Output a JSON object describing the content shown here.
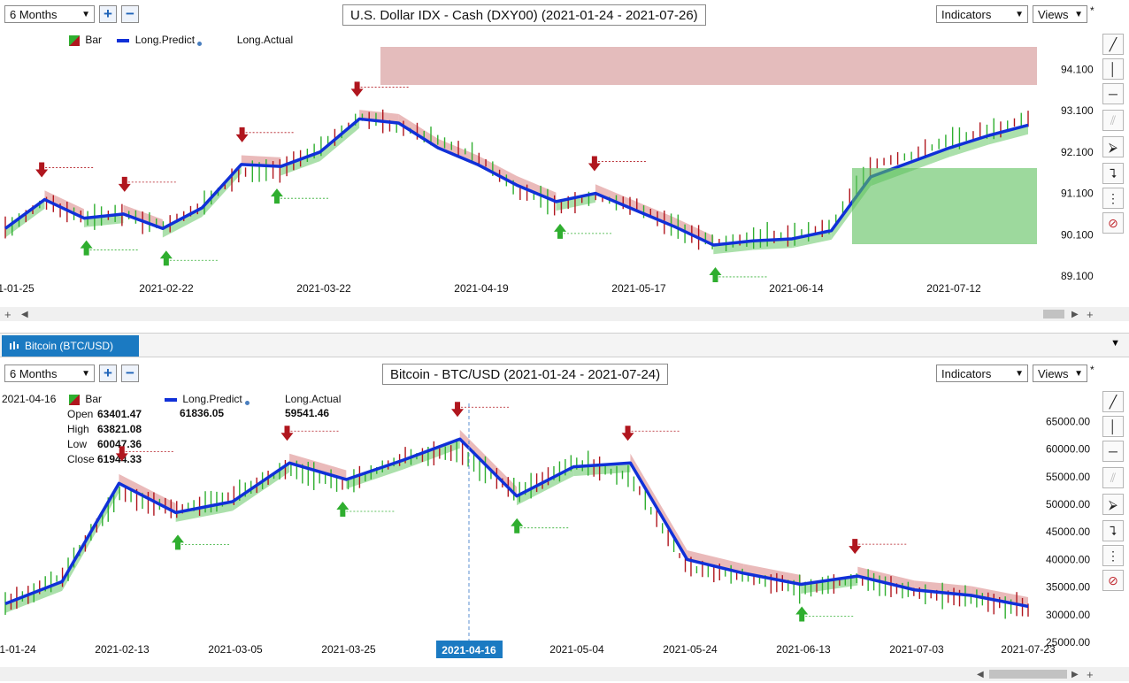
{
  "top": {
    "range_select": "6 Months",
    "title": "U.S. Dollar IDX - Cash (DXY00) (2021-01-24 - 2021-07-26)",
    "indicators_label": "Indicators",
    "views_label": "Views",
    "legend": {
      "bar": "Bar",
      "predict": "Long.Predict",
      "actual": "Long.Actual"
    },
    "price_ticks": [
      "94.100",
      "93.100",
      "92.100",
      "91.100",
      "90.100",
      "89.100"
    ],
    "date_ticks": [
      "1-01-25",
      "2021-02-22",
      "2021-03-22",
      "2021-04-19",
      "2021-05-17",
      "2021-06-14",
      "2021-07-12"
    ]
  },
  "tab": {
    "label": "Bitcoin (BTC/USD)"
  },
  "bottom": {
    "range_select": "6 Months",
    "title": "Bitcoin - BTC/USD (2021-01-24 - 2021-07-24)",
    "indicators_label": "Indicators",
    "views_label": "Views",
    "cursor_date": "2021-04-16",
    "legend": {
      "bar": "Bar",
      "predict": "Long.Predict",
      "actual": "Long.Actual",
      "predict_value": "61836.05",
      "actual_value": "59541.46"
    },
    "ohlc": {
      "open_label": "Open",
      "open": "63401.47",
      "high_label": "High",
      "high": "63821.08",
      "low_label": "Low",
      "low": "60047.36",
      "close_label": "Close",
      "close": "61944.33"
    },
    "price_ticks": [
      "65000.00",
      "60000.00",
      "55000.00",
      "50000.00",
      "45000.00",
      "40000.00",
      "35000.00",
      "30000.00",
      "25000.00"
    ],
    "date_ticks": [
      "1-01-24",
      "2021-02-13",
      "2021-03-05",
      "2021-03-25",
      "2021-05-04",
      "2021-05-24",
      "2021-06-13",
      "2021-07-03",
      "2021-07-23"
    ],
    "cursor_label": "2021-04-16"
  },
  "colors": {
    "predict": "#1030d8",
    "up": "#2fae2f",
    "down": "#b0161e",
    "band_green": "#8fd68f",
    "band_red": "#e3a3a3",
    "accent": "#1b7ac2"
  },
  "chart_data": [
    {
      "type": "line",
      "title": "U.S. Dollar IDX - Cash (DXY00) (2021-01-24 - 2021-07-26)",
      "ylim": [
        89.1,
        94.6
      ],
      "x": [
        "2021-01-25",
        "2021-02-01",
        "2021-02-08",
        "2021-02-15",
        "2021-02-22",
        "2021-03-01",
        "2021-03-08",
        "2021-03-15",
        "2021-03-22",
        "2021-03-29",
        "2021-04-05",
        "2021-04-12",
        "2021-04-19",
        "2021-04-26",
        "2021-05-03",
        "2021-05-10",
        "2021-05-17",
        "2021-05-24",
        "2021-05-31",
        "2021-06-07",
        "2021-06-14",
        "2021-06-21",
        "2021-06-28",
        "2021-07-05",
        "2021-07-12",
        "2021-07-19",
        "2021-07-23"
      ],
      "series": [
        {
          "name": "Long.Predict",
          "values": [
            90.25,
            90.95,
            90.5,
            90.6,
            90.25,
            90.75,
            91.8,
            91.75,
            92.1,
            92.9,
            92.8,
            92.2,
            91.8,
            91.3,
            90.9,
            91.1,
            90.7,
            90.3,
            89.85,
            89.95,
            90.0,
            90.2,
            91.5,
            91.85,
            92.2,
            92.5,
            92.75
          ]
        },
        {
          "name": "Long.Actual",
          "values": [
            90.2,
            90.9,
            90.5,
            90.6,
            90.3,
            90.8,
            91.6,
            91.65,
            92.2,
            92.95,
            92.7,
            92.4,
            92.0,
            91.2,
            90.8,
            91.0,
            90.8,
            90.3,
            89.9,
            90.0,
            90.1,
            90.3,
            91.8,
            92.0,
            92.4,
            92.6,
            92.9
          ]
        }
      ]
    },
    {
      "type": "line",
      "title": "Bitcoin - BTC/USD (2021-01-24 - 2021-07-24)",
      "ylim": [
        25000,
        67000
      ],
      "x": [
        "2021-01-24",
        "2021-02-03",
        "2021-02-13",
        "2021-02-23",
        "2021-03-05",
        "2021-03-15",
        "2021-03-25",
        "2021-04-04",
        "2021-04-16",
        "2021-04-24",
        "2021-05-04",
        "2021-05-14",
        "2021-05-24",
        "2021-06-03",
        "2021-06-13",
        "2021-06-23",
        "2021-07-03",
        "2021-07-13",
        "2021-07-23"
      ],
      "series": [
        {
          "name": "Long.Predict",
          "values": [
            32000,
            36000,
            53800,
            48500,
            50500,
            57500,
            54500,
            58000,
            61836.05,
            51500,
            56800,
            57500,
            40000,
            37500,
            35500,
            37000,
            34500,
            33500,
            31500
          ]
        },
        {
          "name": "Long.Actual",
          "values": [
            31500,
            37000,
            52000,
            49000,
            51500,
            56500,
            53500,
            58500,
            59541.46,
            52000,
            57500,
            55000,
            38500,
            37000,
            34500,
            36500,
            34000,
            33000,
            31000
          ]
        }
      ]
    }
  ]
}
